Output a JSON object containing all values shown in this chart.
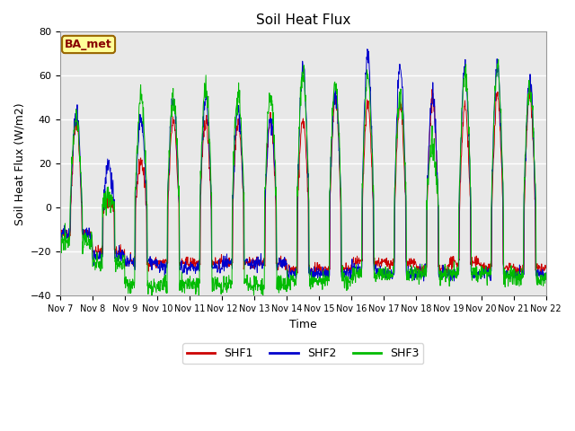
{
  "title": "Soil Heat Flux",
  "ylabel": "Soil Heat Flux (W/m2)",
  "xlabel": "Time",
  "ylim": [
    -40,
    80
  ],
  "xtick_labels": [
    "Nov 7",
    "Nov 8",
    "Nov 9",
    "Nov 10",
    "Nov 11",
    "Nov 12",
    "Nov 13",
    "Nov 14",
    "Nov 15",
    "Nov 16",
    "Nov 17",
    "Nov 18",
    "Nov 19",
    "Nov 20",
    "Nov 21",
    "Nov 22"
  ],
  "legend_labels": [
    "SHF1",
    "SHF2",
    "SHF3"
  ],
  "line_colors": [
    "#cc0000",
    "#0000cc",
    "#00bb00"
  ],
  "annotation_text": "BA_met",
  "annotation_box_color": "#ffff99",
  "annotation_box_edge": "#996600",
  "annotation_text_color": "#880000",
  "background_color": "#e8e8e8",
  "grid_color": "#ffffff",
  "yticks": [
    -40,
    -20,
    0,
    20,
    40,
    60,
    80
  ],
  "n_days": 15,
  "pts_per_day": 96
}
